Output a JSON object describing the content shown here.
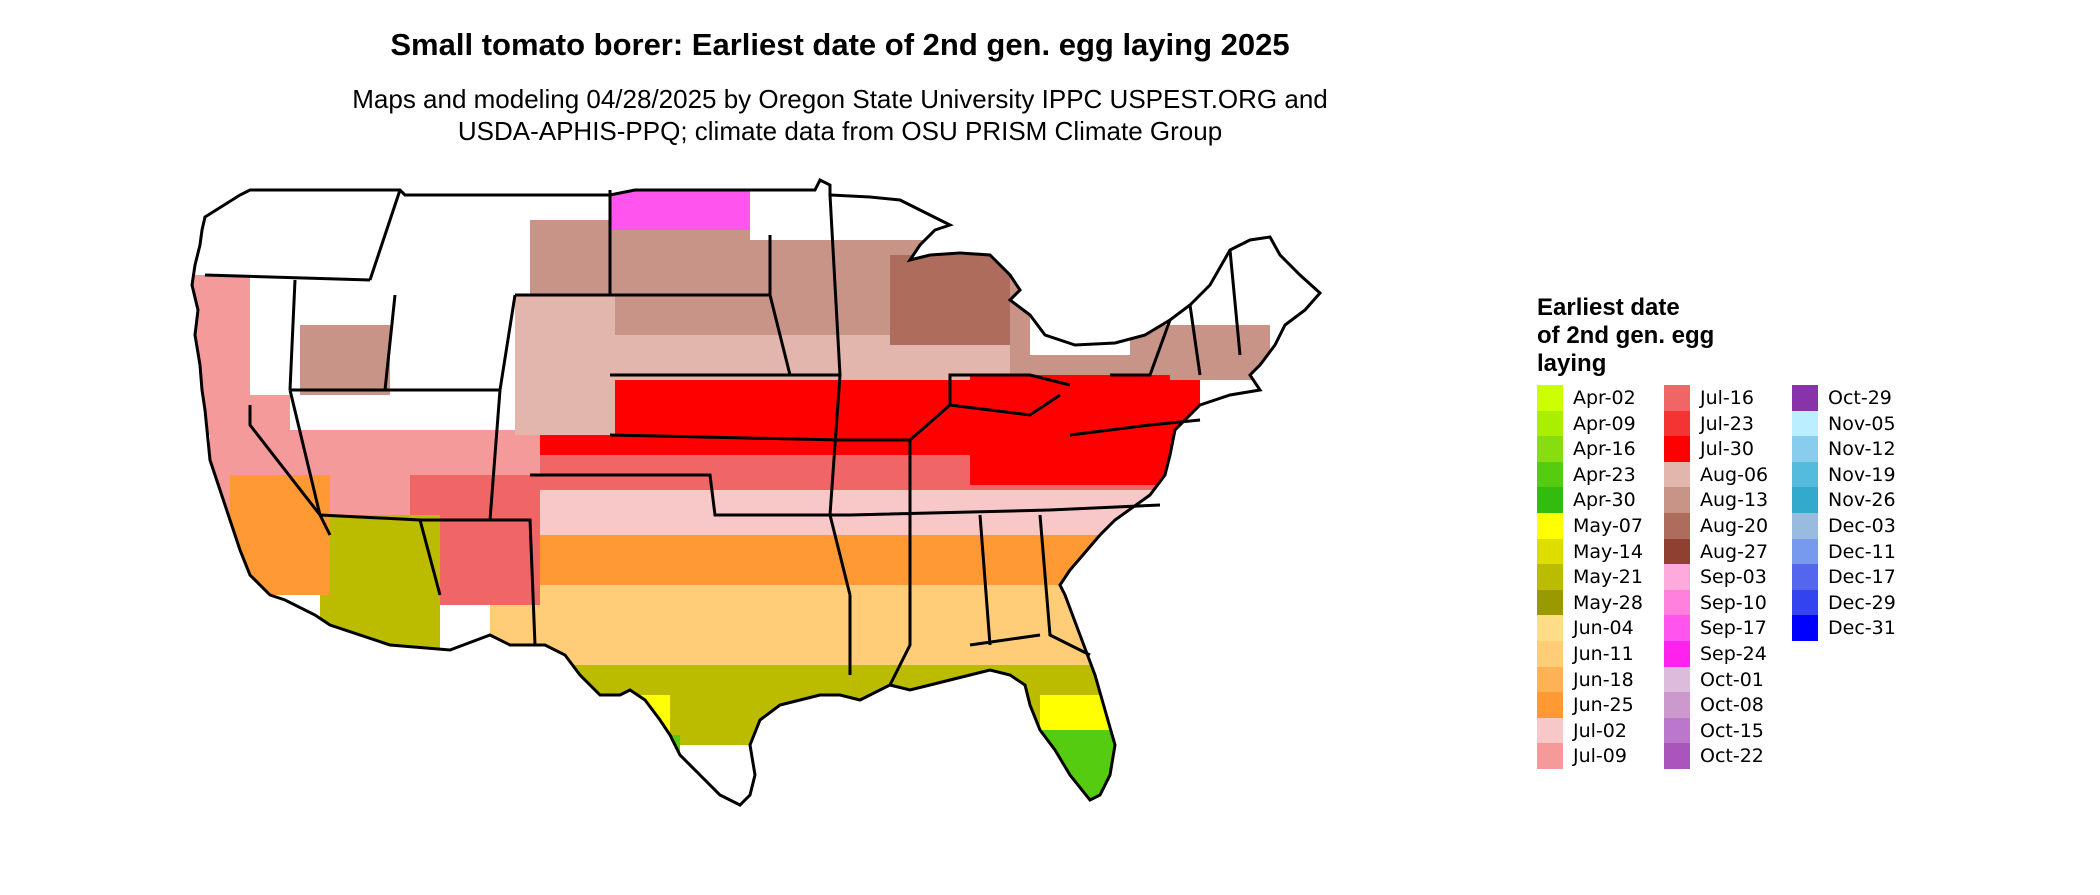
{
  "title": "Small tomato borer: Earliest date of 2nd gen. egg laying 2025",
  "subtitle_line1": "Maps and modeling 04/28/2025 by Oregon State University IPPC USPEST.ORG and",
  "subtitle_line2": "USDA-APHIS-PPQ; climate data from OSU PRISM Climate Group",
  "legend": {
    "title_lines": [
      "Earliest date",
      "of 2nd gen. egg",
      "laying"
    ],
    "columns": [
      [
        {
          "label": "Apr-02",
          "color": "#ccff00"
        },
        {
          "label": "Apr-09",
          "color": "#aaee00"
        },
        {
          "label": "Apr-16",
          "color": "#88dd10"
        },
        {
          "label": "Apr-23",
          "color": "#55cc10"
        },
        {
          "label": "Apr-30",
          "color": "#33bb10"
        },
        {
          "label": "May-07",
          "color": "#ffff00"
        },
        {
          "label": "May-14",
          "color": "#dddd00"
        },
        {
          "label": "May-21",
          "color": "#bbbb00"
        },
        {
          "label": "May-28",
          "color": "#999900"
        },
        {
          "label": "Jun-04",
          "color": "#ffdd88"
        },
        {
          "label": "Jun-11",
          "color": "#ffcc77"
        },
        {
          "label": "Jun-18",
          "color": "#ffb255"
        },
        {
          "label": "Jun-25",
          "color": "#ff9933"
        },
        {
          "label": "Jul-02",
          "color": "#f8c8c8"
        },
        {
          "label": "Jul-09",
          "color": "#f49a9a"
        }
      ],
      [
        {
          "label": "Jul-16",
          "color": "#f06666"
        },
        {
          "label": "Jul-23",
          "color": "#f43333"
        },
        {
          "label": "Jul-30",
          "color": "#ff0000"
        },
        {
          "label": "Aug-06",
          "color": "#e2b5ad"
        },
        {
          "label": "Aug-13",
          "color": "#c99488"
        },
        {
          "label": "Aug-20",
          "color": "#ae6c5c"
        },
        {
          "label": "Aug-27",
          "color": "#8f4030"
        },
        {
          "label": "Sep-03",
          "color": "#ffaadd"
        },
        {
          "label": "Sep-10",
          "color": "#ff80dd"
        },
        {
          "label": "Sep-17",
          "color": "#ff55ee"
        },
        {
          "label": "Sep-24",
          "color": "#ff22ee"
        },
        {
          "label": "Oct-01",
          "color": "#ddbbdd"
        },
        {
          "label": "Oct-08",
          "color": "#cc99cc"
        },
        {
          "label": "Oct-15",
          "color": "#bb77cc"
        },
        {
          "label": "Oct-22",
          "color": "#aa55bb"
        }
      ],
      [
        {
          "label": "Oct-29",
          "color": "#8833aa"
        },
        {
          "label": "Nov-05",
          "color": "#bbeeff"
        },
        {
          "label": "Nov-12",
          "color": "#88ccee"
        },
        {
          "label": "Nov-19",
          "color": "#55bbdd"
        },
        {
          "label": "Nov-26",
          "color": "#33aacc"
        },
        {
          "label": "Dec-03",
          "color": "#99bbdd"
        },
        {
          "label": "Dec-11",
          "color": "#7799ee"
        },
        {
          "label": "Dec-17",
          "color": "#5566ee"
        },
        {
          "label": "Dec-29",
          "color": "#3344ee"
        },
        {
          "label": "Dec-31",
          "color": "#0000ff"
        }
      ]
    ]
  },
  "map": {
    "region": "conterminous United States",
    "outline_color": "#000000",
    "not_reached_color": "#ffffff",
    "zones": [
      {
        "area": "northern-plains",
        "legend": "Aug-13",
        "color": "#c99488"
      },
      {
        "area": "central-plains-south",
        "legend": "Aug-06",
        "color": "#e2b5ad"
      },
      {
        "area": "central-band",
        "legend": "Jul-30",
        "color": "#ff0000"
      },
      {
        "area": "mid-south",
        "legend": "Jul-02",
        "color": "#f8c8c8"
      },
      {
        "area": "southern-band",
        "legend": "Jun-25",
        "color": "#ff9933"
      },
      {
        "area": "deep-south",
        "legend": "Jun-11",
        "color": "#ffcc77"
      },
      {
        "area": "gulf-coast",
        "legend": "May-21",
        "color": "#bbbb00"
      },
      {
        "area": "south-texas",
        "legend": "May-07",
        "color": "#ffff00"
      },
      {
        "area": "texas-tip",
        "legend": "Apr-23",
        "color": "#55cc10"
      },
      {
        "area": "south-florida",
        "legend": "Apr-23",
        "color": "#55cc10"
      },
      {
        "area": "central-florida",
        "legend": "May-07",
        "color": "#ffff00"
      },
      {
        "area": "california-coast",
        "legend": "Jul-09",
        "color": "#f49a9a"
      },
      {
        "area": "southern-california",
        "legend": "Jun-25",
        "color": "#ff9933"
      },
      {
        "area": "arizona-desert",
        "legend": "May-21",
        "color": "#bbbb00"
      },
      {
        "area": "northern-tier-fringe",
        "legend": "Sep-17",
        "color": "#ff55ee"
      }
    ]
  }
}
